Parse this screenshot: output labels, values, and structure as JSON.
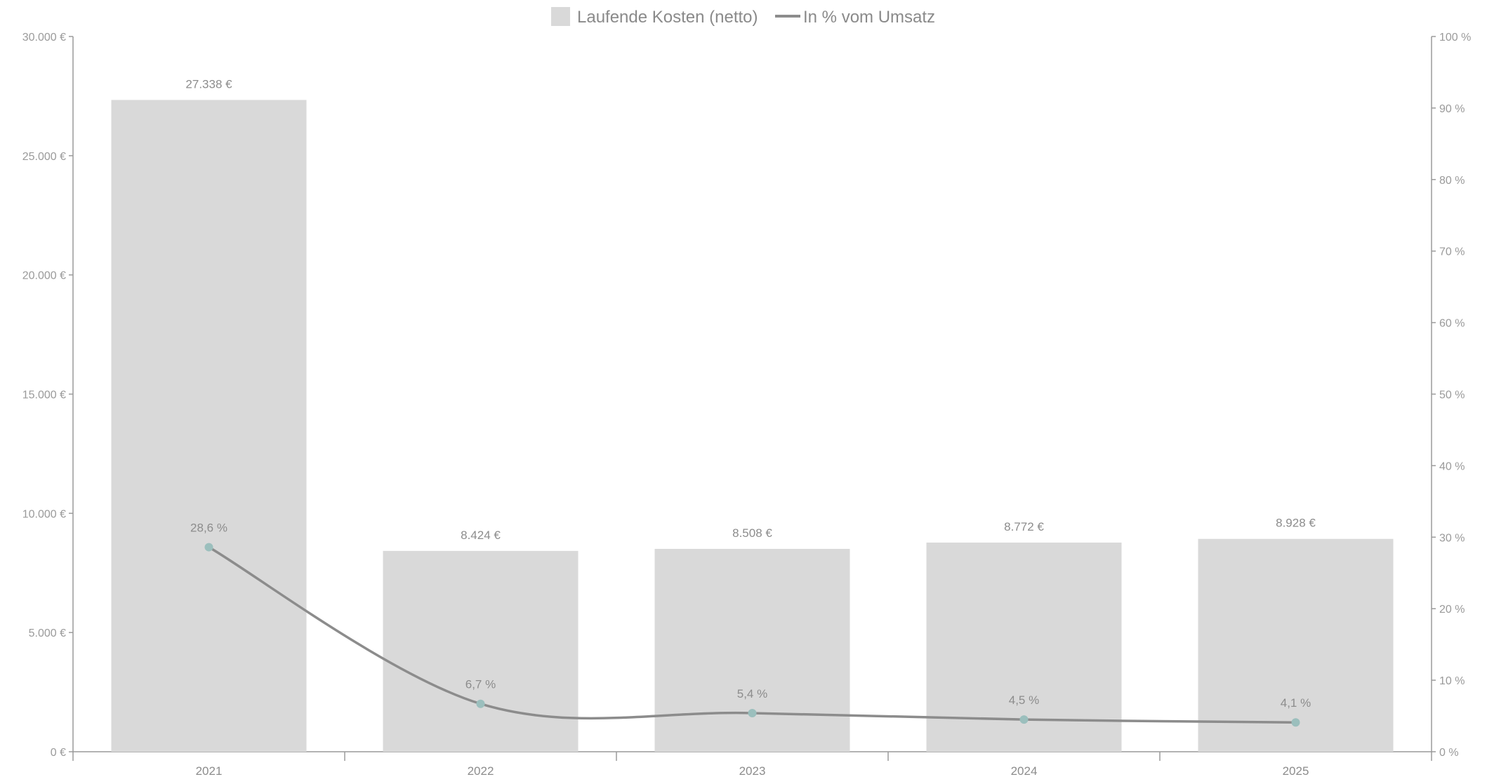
{
  "chart_data": {
    "type": "bar",
    "categories": [
      "2021",
      "2022",
      "2023",
      "2024",
      "2025"
    ],
    "series": [
      {
        "name": "Laufende Kosten (netto)",
        "type": "bar",
        "axis": "left",
        "values": [
          27338,
          8424,
          8508,
          8772,
          8928
        ],
        "labels": [
          "27.338 €",
          "8.424 €",
          "8.508 €",
          "8.772 €",
          "8.928 €"
        ],
        "color": "#d9d9d9"
      },
      {
        "name": "In % vom Umsatz",
        "type": "line",
        "axis": "right",
        "values": [
          28.6,
          6.7,
          5.4,
          4.5,
          4.1
        ],
        "labels": [
          "28,6 %",
          "6,7 %",
          "5,4 %",
          "4,5 %",
          "4,1 %"
        ],
        "color": "#8c8c8c",
        "marker_color": "#9bbfbd"
      }
    ],
    "left_axis": {
      "ylim": [
        0,
        30000
      ],
      "ticks": [
        0,
        5000,
        10000,
        15000,
        20000,
        25000,
        30000
      ],
      "tick_labels": [
        "0 €",
        "5.000 €",
        "10.000 €",
        "15.000 €",
        "20.000 €",
        "25.000 €",
        "30.000 €"
      ]
    },
    "right_axis": {
      "ylim": [
        0,
        100
      ],
      "ticks": [
        0,
        10,
        20,
        30,
        40,
        50,
        60,
        70,
        80,
        90,
        100
      ],
      "tick_labels": [
        "0 %",
        "10 %",
        "20 %",
        "30 %",
        "40 %",
        "50 %",
        "60 %",
        "70 %",
        "80 %",
        "90 %",
        "100 %"
      ]
    },
    "legend_position": "top-center",
    "grid": false
  }
}
